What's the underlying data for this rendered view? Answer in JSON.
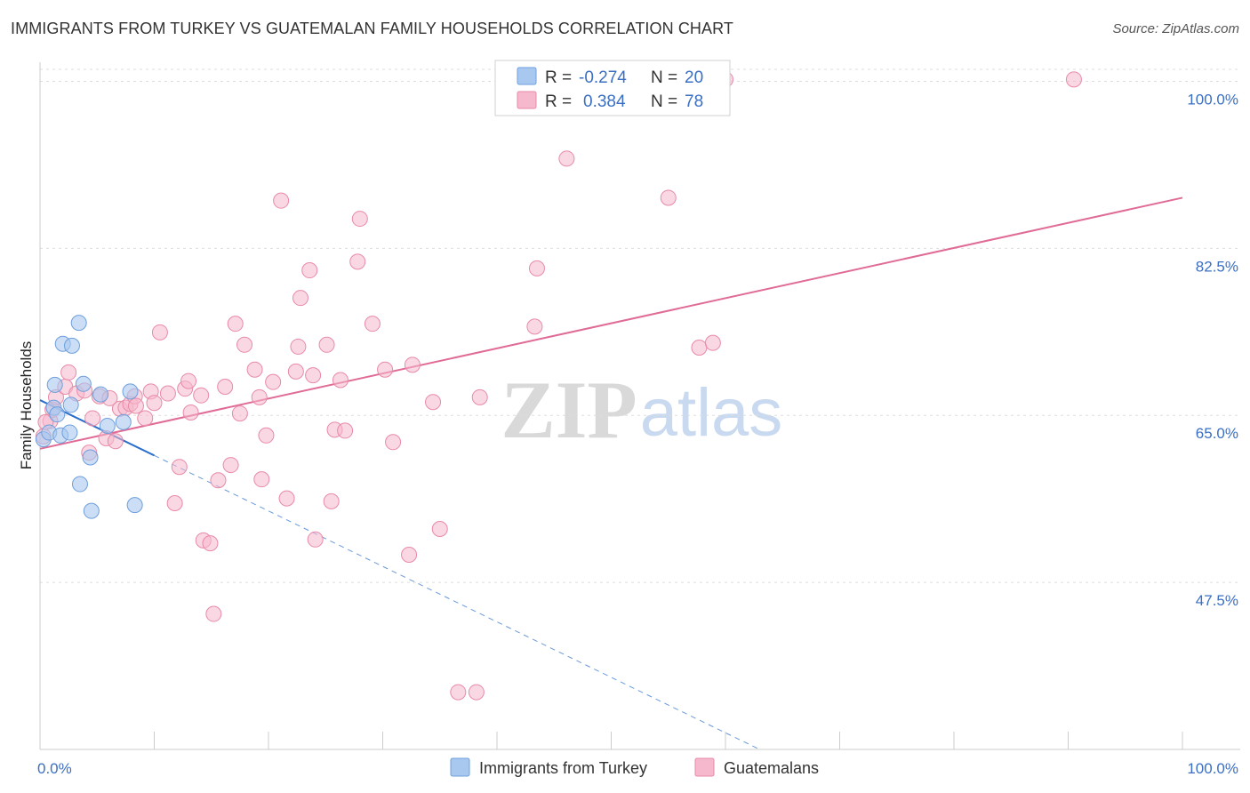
{
  "title": "IMMIGRANTS FROM TURKEY VS GUATEMALAN FAMILY HOUSEHOLDS CORRELATION CHART",
  "source": "Source: ZipAtlas.com",
  "watermark": {
    "zip": "ZIP",
    "atlas": "atlas"
  },
  "colors": {
    "blue_fill": "#a9c8ef",
    "blue_stroke": "#6f9fdc",
    "blue_line": "#2a6fcb",
    "pink_fill": "#f5b8cc",
    "pink_stroke": "#e88aa8",
    "pink_line": "#e06b96",
    "tick_text": "#3a6fc4",
    "grid": "#dddddd"
  },
  "legend": {
    "r_label": "R =",
    "n_label": "N =",
    "series": [
      {
        "r": "-0.274",
        "n": "20"
      },
      {
        "r": "0.384",
        "n": "78"
      }
    ]
  },
  "chart_data": {
    "type": "scatter",
    "xlabel": "",
    "ylabel": "Family Households",
    "xlim": [
      0,
      100
    ],
    "ylim": [
      30,
      102
    ],
    "x_tick_labels": [
      "0.0%",
      "100.0%"
    ],
    "y_ticks": [
      47.5,
      65.0,
      82.5,
      100.0
    ],
    "y_tick_labels": [
      "47.5%",
      "65.0%",
      "82.5%",
      "100.0%"
    ],
    "grid": true,
    "legend_position": "top-center",
    "series": [
      {
        "name": "Immigrants from Turkey",
        "color": "blue",
        "points": [
          [
            0.3,
            62.5
          ],
          [
            0.8,
            63.2
          ],
          [
            1.2,
            65.8
          ],
          [
            1.3,
            68.2
          ],
          [
            1.5,
            65.1
          ],
          [
            1.8,
            62.9
          ],
          [
            2.0,
            72.5
          ],
          [
            2.7,
            66.1
          ],
          [
            2.6,
            63.2
          ],
          [
            2.8,
            72.3
          ],
          [
            3.4,
            74.7
          ],
          [
            3.5,
            57.8
          ],
          [
            3.8,
            68.3
          ],
          [
            4.4,
            60.6
          ],
          [
            4.5,
            55.0
          ],
          [
            5.3,
            67.2
          ],
          [
            5.9,
            63.9
          ],
          [
            7.3,
            64.3
          ],
          [
            7.9,
            67.5
          ],
          [
            8.3,
            55.6
          ]
        ],
        "trend": {
          "x": [
            0,
            10
          ],
          "y": [
            66.6,
            60.8
          ],
          "dashed_extension_to_x": 63,
          "dashed_end_y": 30.0
        }
      },
      {
        "name": "Guatemalans",
        "color": "pink",
        "points": [
          [
            0.3,
            62.8
          ],
          [
            0.9,
            64.4
          ],
          [
            1.1,
            65.6
          ],
          [
            1.4,
            66.9
          ],
          [
            2.2,
            68.0
          ],
          [
            2.5,
            69.5
          ],
          [
            3.2,
            67.3
          ],
          [
            3.9,
            67.6
          ],
          [
            4.3,
            61.1
          ],
          [
            4.6,
            64.7
          ],
          [
            5.2,
            67.0
          ],
          [
            5.8,
            62.6
          ],
          [
            6.1,
            66.8
          ],
          [
            6.6,
            62.3
          ],
          [
            7.0,
            65.7
          ],
          [
            7.5,
            65.8
          ],
          [
            7.9,
            66.2
          ],
          [
            8.3,
            67.0
          ],
          [
            8.4,
            66.0
          ],
          [
            9.2,
            64.7
          ],
          [
            9.7,
            67.5
          ],
          [
            10.0,
            66.3
          ],
          [
            10.5,
            73.7
          ],
          [
            11.2,
            67.3
          ],
          [
            11.8,
            55.8
          ],
          [
            12.2,
            59.6
          ],
          [
            12.7,
            67.8
          ],
          [
            13.0,
            68.6
          ],
          [
            13.2,
            65.3
          ],
          [
            14.1,
            67.1
          ],
          [
            14.3,
            51.9
          ],
          [
            14.9,
            51.6
          ],
          [
            15.2,
            44.2
          ],
          [
            15.6,
            58.2
          ],
          [
            16.2,
            68.0
          ],
          [
            16.7,
            59.8
          ],
          [
            17.1,
            74.6
          ],
          [
            17.5,
            65.2
          ],
          [
            17.9,
            72.4
          ],
          [
            18.8,
            69.8
          ],
          [
            19.2,
            66.9
          ],
          [
            19.4,
            58.3
          ],
          [
            19.8,
            62.9
          ],
          [
            20.4,
            68.5
          ],
          [
            21.1,
            87.5
          ],
          [
            21.6,
            56.3
          ],
          [
            22.4,
            69.6
          ],
          [
            22.6,
            72.2
          ],
          [
            22.8,
            77.3
          ],
          [
            23.6,
            80.2
          ],
          [
            23.9,
            69.2
          ],
          [
            24.1,
            52.0
          ],
          [
            25.1,
            72.4
          ],
          [
            25.5,
            56.0
          ],
          [
            25.8,
            63.5
          ],
          [
            26.3,
            68.7
          ],
          [
            26.7,
            63.4
          ],
          [
            27.8,
            81.1
          ],
          [
            28.0,
            85.6
          ],
          [
            29.1,
            74.6
          ],
          [
            30.2,
            69.8
          ],
          [
            30.9,
            62.2
          ],
          [
            32.3,
            50.4
          ],
          [
            32.6,
            70.3
          ],
          [
            34.4,
            66.4
          ],
          [
            35.0,
            53.1
          ],
          [
            36.6,
            36.0
          ],
          [
            38.2,
            36.0
          ],
          [
            38.5,
            66.9
          ],
          [
            43.3,
            74.3
          ],
          [
            43.5,
            80.4
          ],
          [
            46.1,
            91.9
          ],
          [
            55.0,
            87.8
          ],
          [
            57.7,
            72.1
          ],
          [
            58.9,
            72.6
          ],
          [
            60.0,
            100.2
          ],
          [
            90.5,
            100.2
          ],
          [
            0.5,
            64.3
          ]
        ],
        "trend": {
          "x": [
            0,
            100
          ],
          "y": [
            61.5,
            87.8
          ]
        }
      }
    ]
  }
}
